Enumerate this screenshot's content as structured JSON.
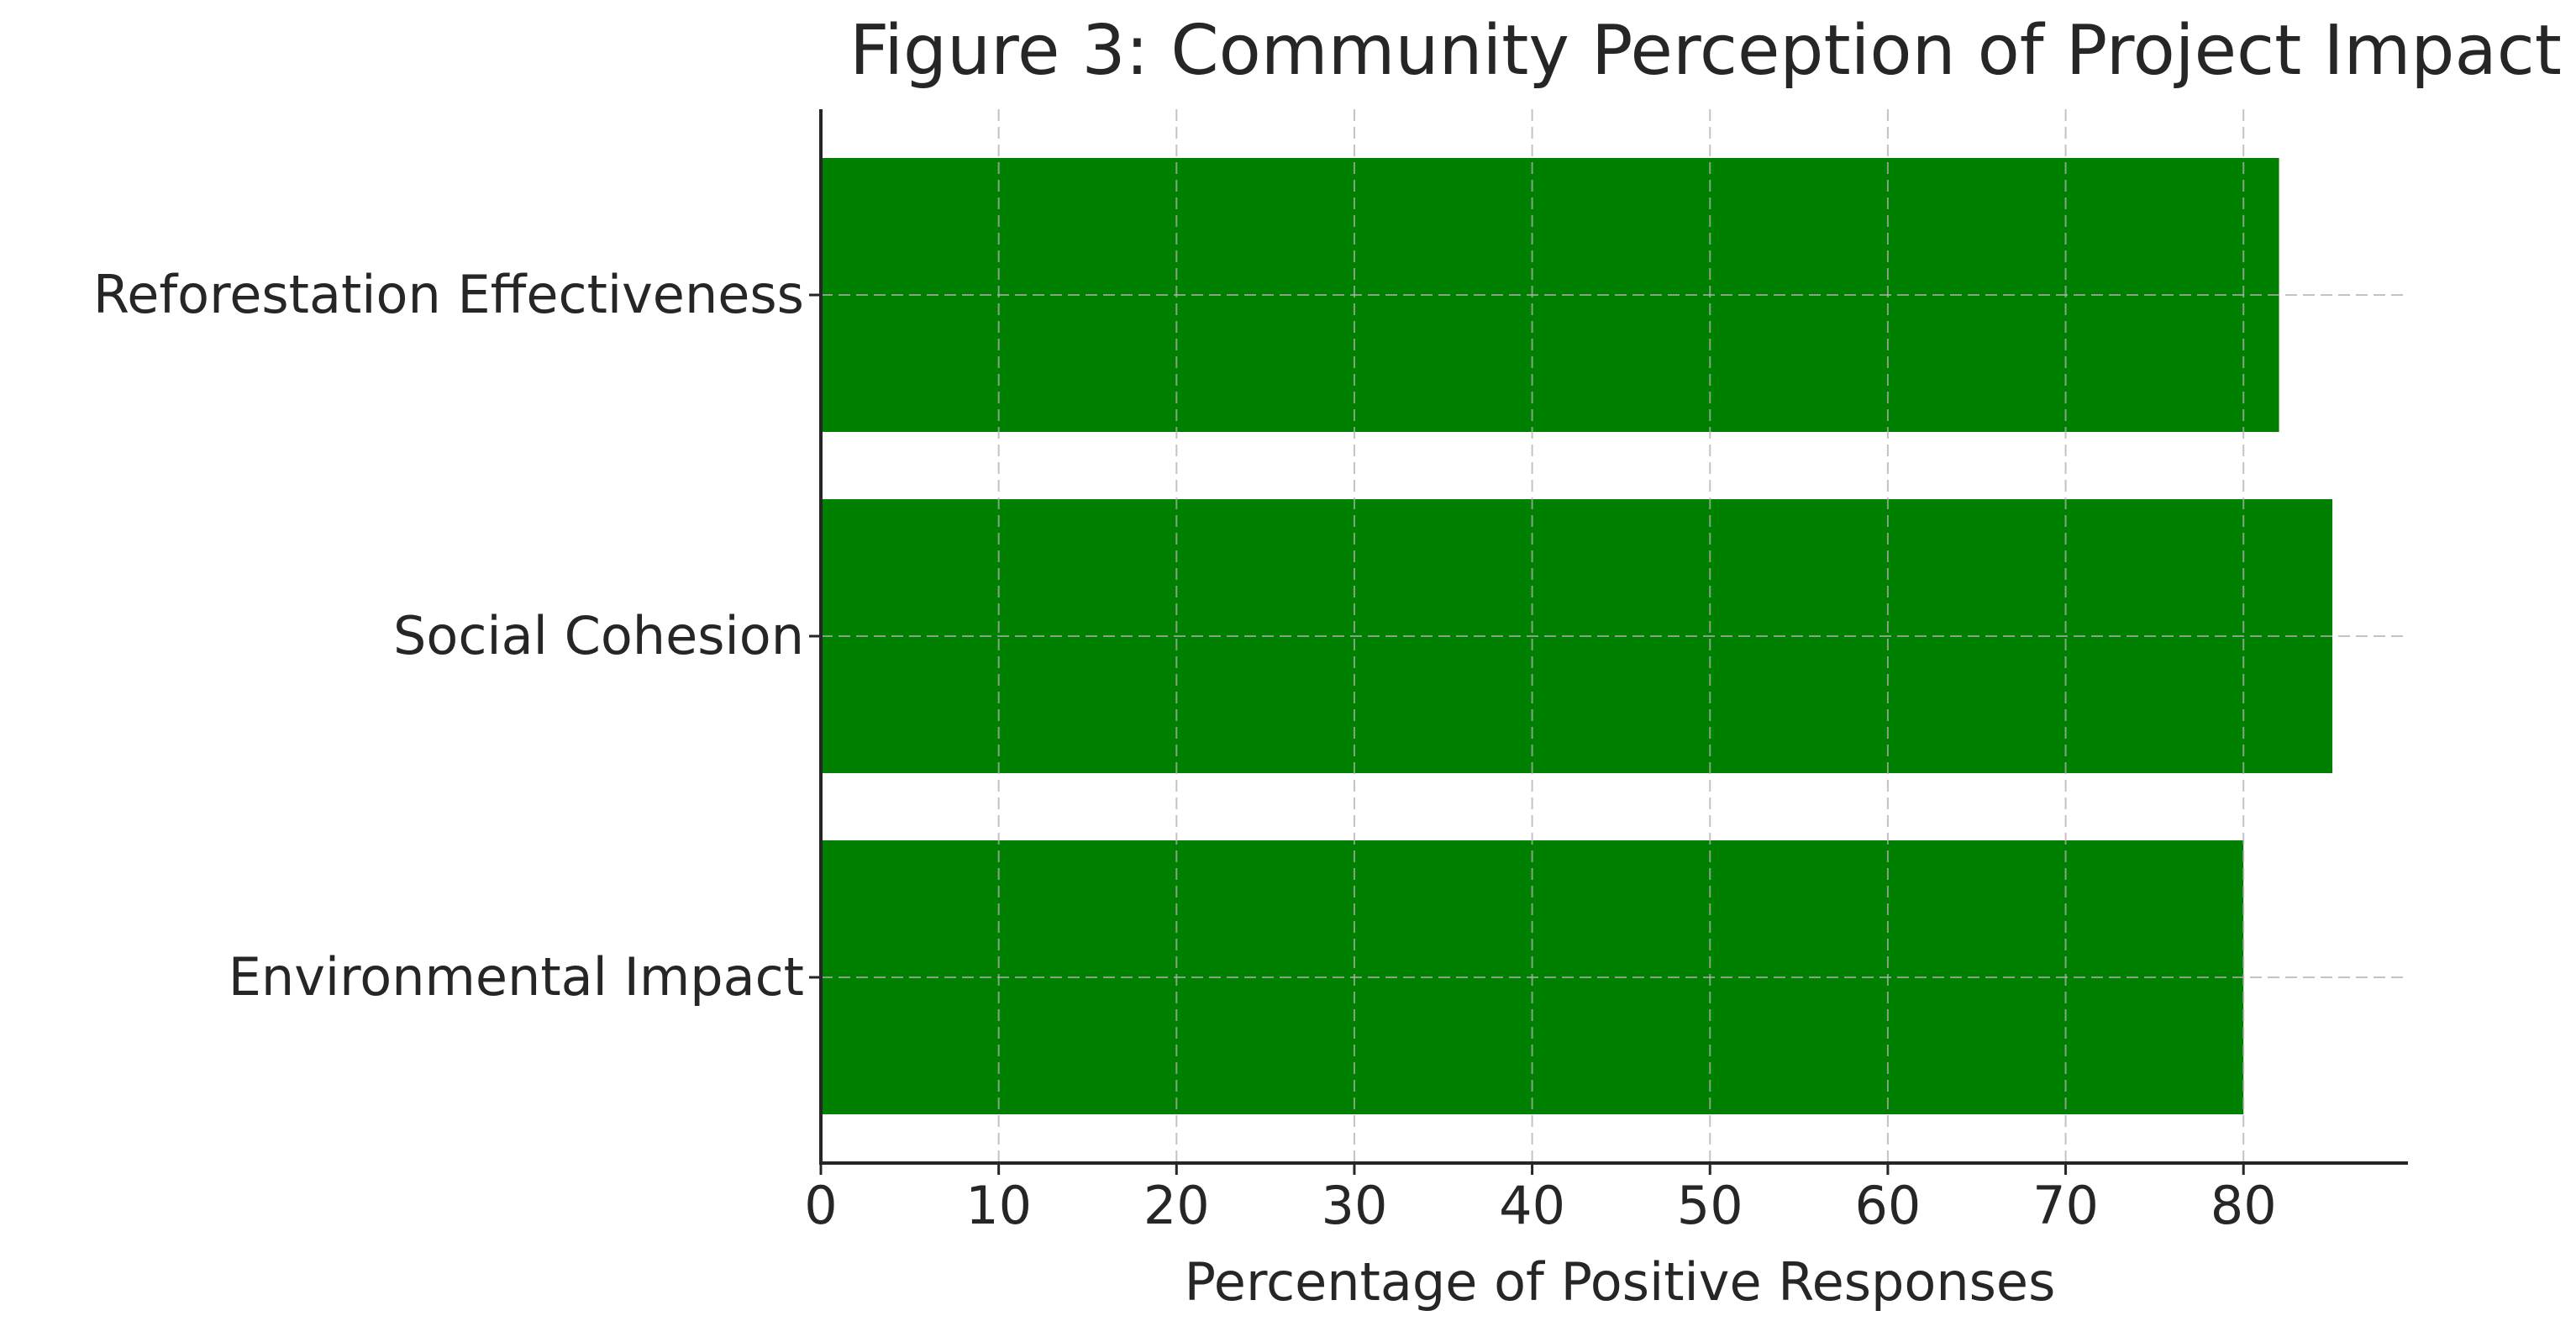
{
  "chart_data": {
    "type": "bar",
    "orientation": "horizontal",
    "title": "Figure 3: Community Perception of Project Impact",
    "xlabel": "Percentage of Positive Responses",
    "ylabel": "",
    "categories": [
      "Environmental Impact",
      "Social Cohesion",
      "Reforestation Effectiveness"
    ],
    "values": [
      80,
      85,
      82
    ],
    "xlim": [
      0,
      89.25
    ],
    "xticks": [
      0,
      10,
      20,
      30,
      40,
      50,
      60,
      70,
      80
    ],
    "grid": true,
    "colors": {
      "bar": "#008000",
      "grid": "#b0b0b0",
      "axis": "#262626",
      "text": "#262626",
      "background": "#ffffff"
    }
  }
}
